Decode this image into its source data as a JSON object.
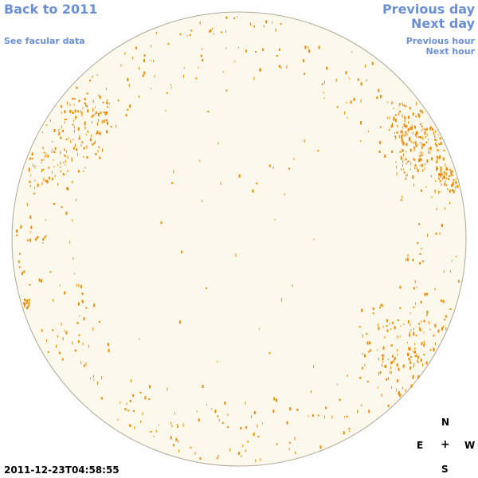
{
  "nav": {
    "back": "Back to 2011",
    "facular": "See facular data",
    "prev_day": "Previous day",
    "next_day": "Next day",
    "prev_hour": "Previous hour",
    "next_hour": "Next hour"
  },
  "timestamp": "2011-12-23T04:58:55",
  "compass": {
    "n": "N",
    "e": "E",
    "center": "+",
    "w": "W",
    "s": "S"
  },
  "colors": {
    "disk_fill": "#fdf8ec",
    "disk_stroke": "#b0a898",
    "feature": "#f08a00",
    "link": "#6b8fd6"
  }
}
